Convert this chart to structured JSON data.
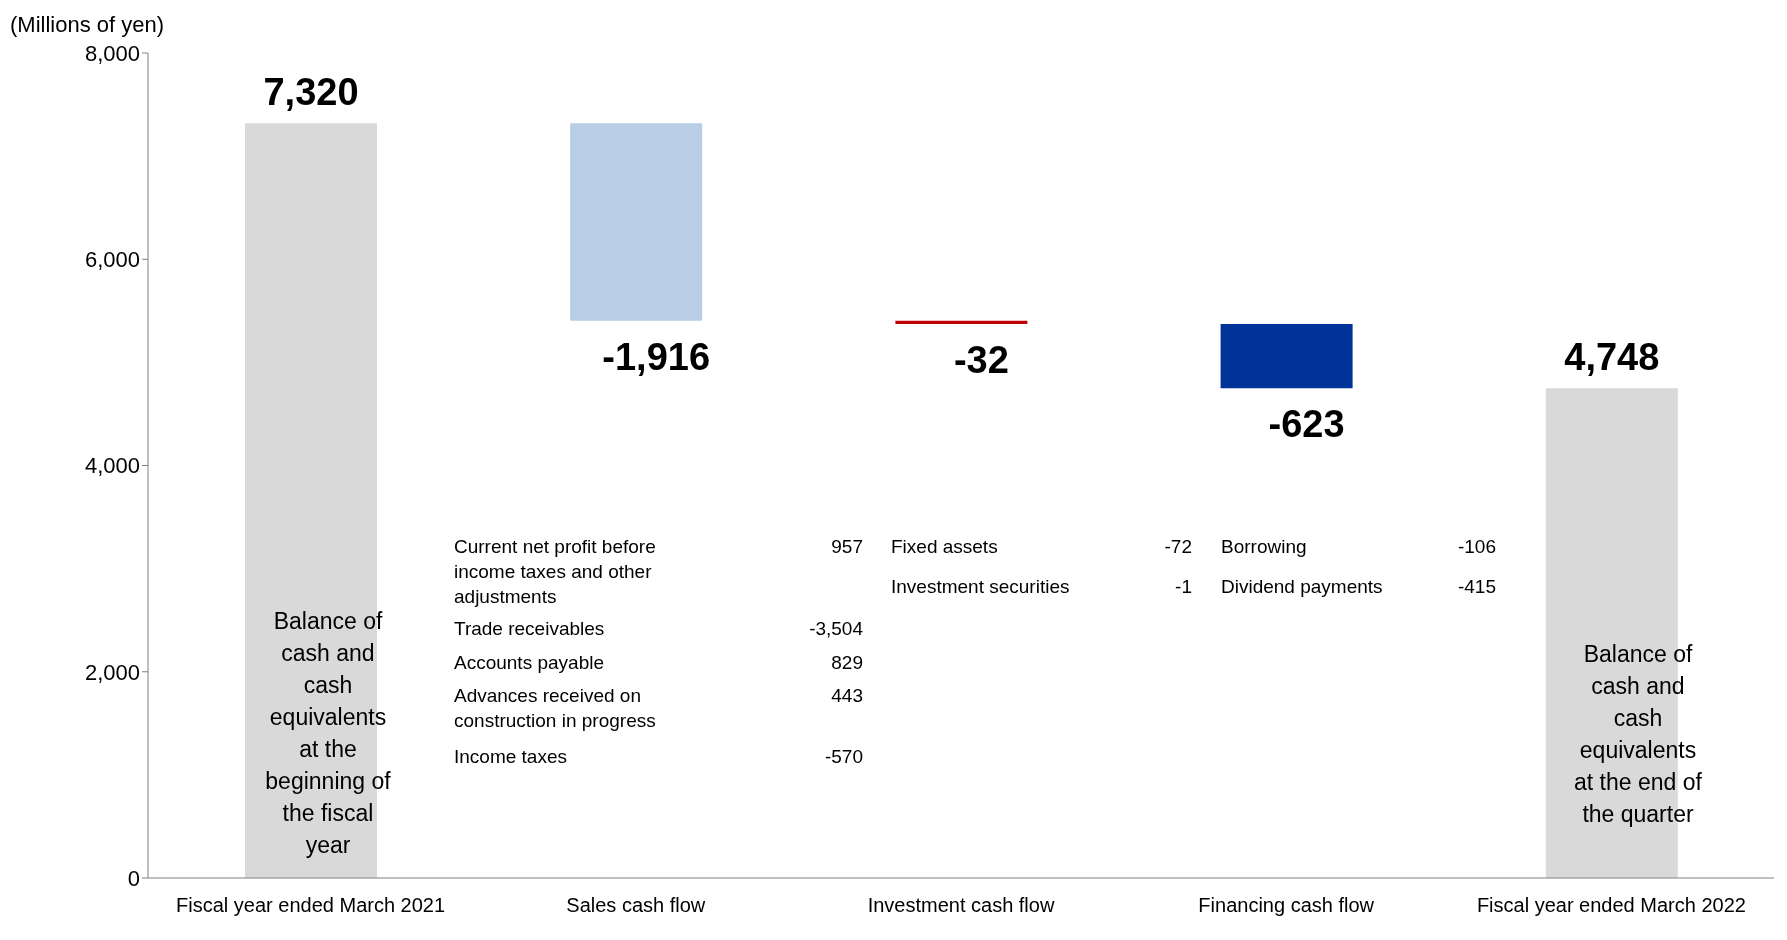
{
  "chart_data": {
    "type": "bar",
    "ylabel": "(Millions of yen)",
    "categories": [
      "Fiscal year ended March 2021",
      "Sales cash flow",
      "Investment cash flow",
      "Financing cash flow",
      "Fiscal year ended March 2022"
    ],
    "values": [
      7320,
      -1916,
      -32,
      -623,
      4748
    ],
    "base": [
      0,
      7320,
      5404,
      5372,
      0
    ],
    "colors": [
      "#d9d9d9",
      "#b9cde5",
      "#c00000",
      "#003399",
      "#d9d9d9"
    ],
    "value_labels": [
      "7,320",
      "-1,916",
      "-32",
      "-623",
      "4,748"
    ],
    "ylim": [
      0,
      8000
    ],
    "yticks": [
      {
        "value": 0,
        "label": "0"
      },
      {
        "value": 2000,
        "label": "2,000"
      },
      {
        "value": 4000,
        "label": "4,000"
      },
      {
        "value": 6000,
        "label": "6,000"
      },
      {
        "value": 8000,
        "label": "8,000"
      }
    ],
    "grid": false,
    "legend": false,
    "annotations": [
      "Balance of cash and cash equivalents at the beginning of the fiscal year",
      "Balance of cash and cash equivalents at the end of the quarter",
      "Current net profit before income taxes and other adjustments",
      "957",
      "Trade receivables",
      "-3,504",
      "Accounts payable",
      "829",
      "Advances received on construction in progress",
      "443",
      "Income taxes",
      "-570",
      "Fixed assets",
      "-72",
      "Investment securities",
      "-1",
      "Borrowing",
      "-106",
      "Dividend payments",
      "-415"
    ]
  }
}
